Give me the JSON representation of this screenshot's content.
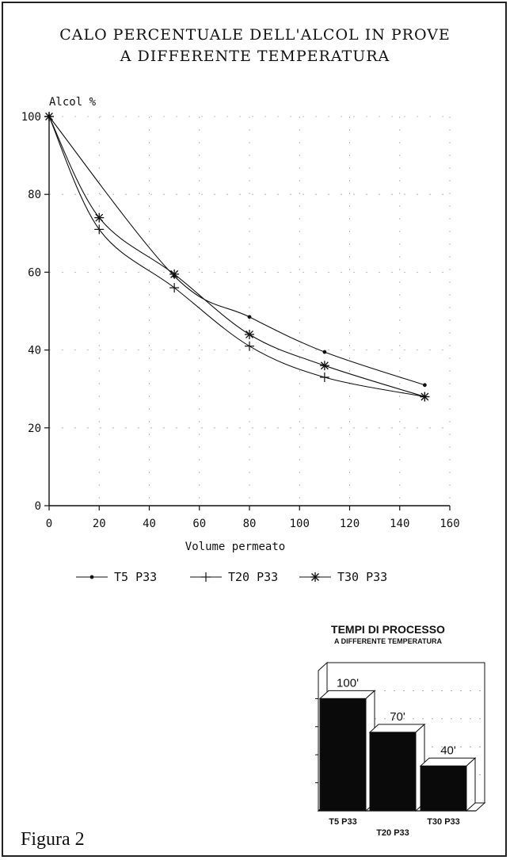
{
  "chart_data": [
    {
      "type": "line",
      "title": "CALO PERCENTUALE DELL'ALCOL IN PROVE A DIFFERENTE TEMPERATURA",
      "title_lines": [
        "CALO PERCENTUALE DELL'ALCOL IN PROVE",
        "A DIFFERENTE TEMPERATURA"
      ],
      "xlabel": "Volume permeato",
      "ylabel": "Alcol %",
      "xlim": [
        0,
        160
      ],
      "ylim": [
        0,
        100
      ],
      "xticks": [
        0,
        20,
        40,
        60,
        80,
        100,
        120,
        140,
        160
      ],
      "yticks": [
        0,
        20,
        40,
        60,
        80,
        100
      ],
      "grid": true,
      "legend": "bottom",
      "series": [
        {
          "name": "T5 P33",
          "marker": "dot",
          "x": [
            0,
            50,
            80,
            110,
            150
          ],
          "y": [
            100,
            59,
            48.5,
            39.5,
            31
          ]
        },
        {
          "name": "T20 P33",
          "marker": "plus",
          "x": [
            0,
            20,
            50,
            80,
            110,
            150
          ],
          "y": [
            100,
            71,
            56,
            41,
            33,
            28
          ]
        },
        {
          "name": "T30 P33",
          "marker": "star",
          "x": [
            0,
            20,
            50,
            80,
            110,
            150
          ],
          "y": [
            100,
            74,
            59.5,
            44,
            36,
            28
          ]
        }
      ]
    },
    {
      "type": "bar",
      "title_lines": [
        "TEMPI DI PROCESSO",
        "A DIFFERENTE TEMPERATURA"
      ],
      "categories": [
        "T5 P33",
        "T20 P33",
        "T30 P33"
      ],
      "values": [
        100,
        70,
        40
      ],
      "value_labels": [
        "100'",
        "70'",
        "40'"
      ],
      "ylim": [
        0,
        125
      ]
    }
  ],
  "caption": "Figura 2"
}
